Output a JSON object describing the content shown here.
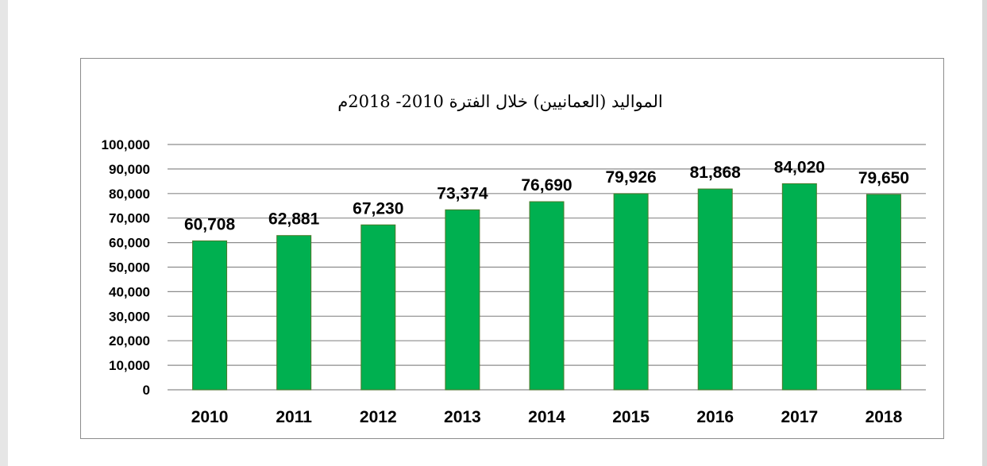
{
  "chart_data": {
    "type": "bar",
    "title": "المواليد (العمانيين) خلال الفترة 2010- 2018م",
    "categories": [
      "2010",
      "2011",
      "2012",
      "2013",
      "2014",
      "2015",
      "2016",
      "2017",
      "2018"
    ],
    "values": [
      60708,
      62881,
      67230,
      73374,
      76690,
      79926,
      81868,
      84020,
      79650
    ],
    "data_labels": [
      "60,708",
      "62,881",
      "67,230",
      "73,374",
      "76,690",
      "79,926",
      "81,868",
      "84,020",
      "79,650"
    ],
    "y_ticks": [
      "0",
      "10,000",
      "20,000",
      "30,000",
      "40,000",
      "50,000",
      "60,000",
      "70,000",
      "80,000",
      "90,000",
      "100,000"
    ],
    "ylim": [
      0,
      100000
    ],
    "ytick_step": 10000,
    "grid": true,
    "legend": "none",
    "colors": {
      "bar_fill": "#00b050",
      "bar_stroke": "#4d7a2a",
      "grid": "#8c8c8c"
    }
  }
}
